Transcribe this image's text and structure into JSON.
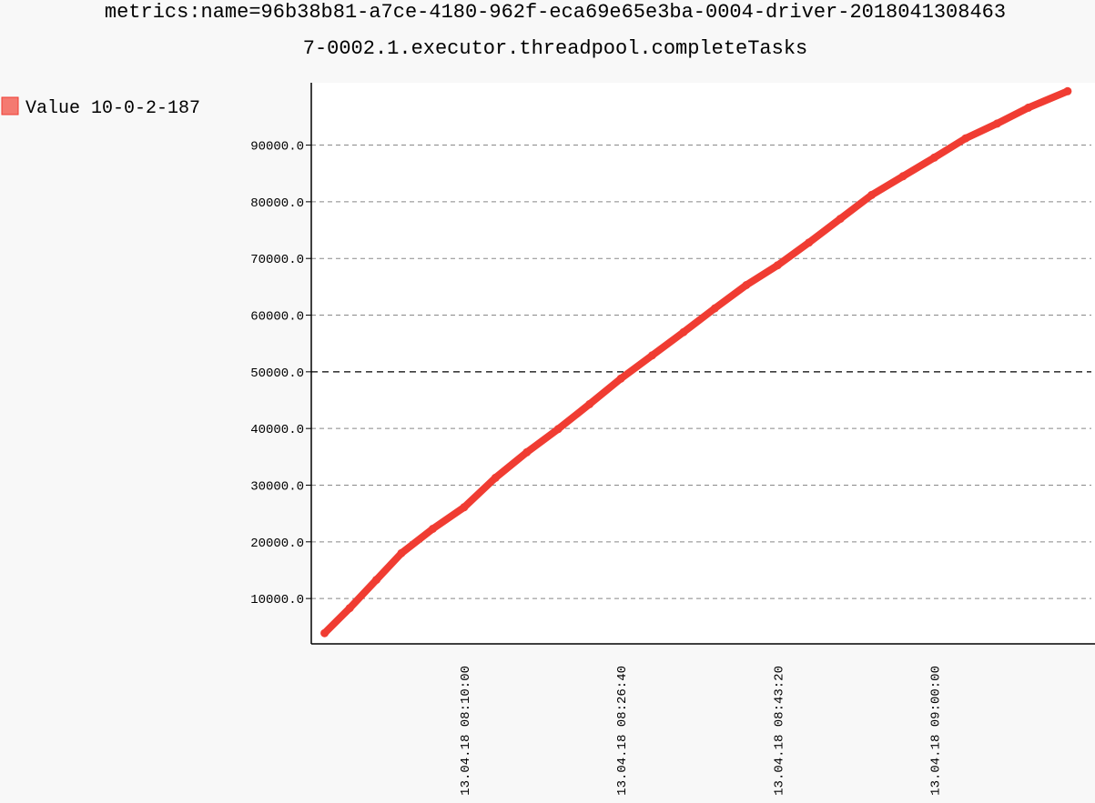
{
  "chart_data": {
    "type": "line",
    "title": "metrics:name=96b38b81-a7ce-4180-962f-eca69e65e3ba-0004-driver-2018041308463",
    "subtitle": "7-0002.1.executor.threadpool.completeTasks",
    "xlabel": "",
    "ylabel": "",
    "x_ticks": [
      "13.04.18 08:10:00",
      "13.04.18 08:26:40",
      "13.04.18 08:43:20",
      "13.04.18 09:00:00"
    ],
    "x_tick_seconds": [
      0,
      1000,
      2000,
      3000
    ],
    "xlim": [
      -975,
      4025
    ],
    "y_ticks": [
      "10000.0",
      "20000.0",
      "30000.0",
      "40000.0",
      "50000.0",
      "60000.0",
      "70000.0",
      "80000.0",
      "90000.0"
    ],
    "ylim": [
      2000,
      101000
    ],
    "grid": true,
    "legend_position": "top-left",
    "colors": {
      "series": "#f03c32",
      "legend_fill": "#f47a71",
      "grid": "#888888",
      "grid_emphasis": "#000000",
      "axis": "#000000",
      "plot_background": "#ffffff"
    },
    "series": [
      {
        "name": "Value 10-0-2-187",
        "points": [
          [
            -890,
            3900
          ],
          [
            -730,
            8300
          ],
          [
            -560,
            13300
          ],
          [
            -400,
            18000
          ],
          [
            -200,
            22300
          ],
          [
            0,
            26100
          ],
          [
            200,
            31300
          ],
          [
            400,
            35800
          ],
          [
            600,
            39900
          ],
          [
            800,
            44300
          ],
          [
            1000,
            48800
          ],
          [
            1200,
            52900
          ],
          [
            1400,
            57000
          ],
          [
            1600,
            61200
          ],
          [
            1800,
            65300
          ],
          [
            2000,
            68800
          ],
          [
            2200,
            72800
          ],
          [
            2400,
            77000
          ],
          [
            2600,
            81200
          ],
          [
            2800,
            84500
          ],
          [
            3000,
            87800
          ],
          [
            3200,
            91200
          ],
          [
            3400,
            93800
          ],
          [
            3600,
            96600
          ],
          [
            3850,
            99500
          ]
        ]
      }
    ]
  }
}
